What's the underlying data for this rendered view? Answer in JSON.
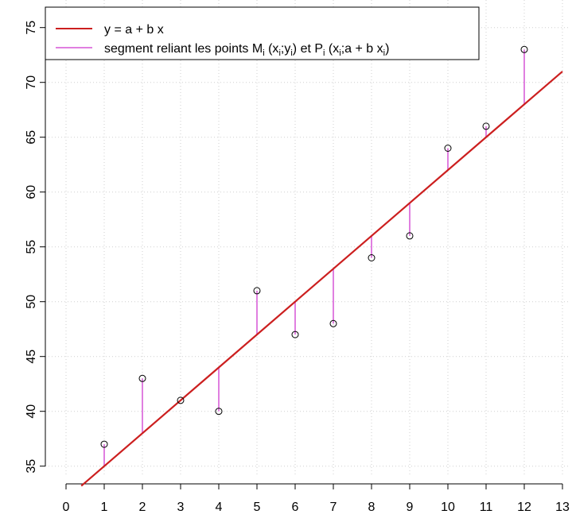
{
  "chart_data": {
    "type": "scatter",
    "title": "",
    "xlabel": "",
    "ylabel": "",
    "xlim": [
      0,
      13
    ],
    "ylim": [
      34,
      76
    ],
    "x_ticks": [
      0,
      1,
      2,
      3,
      4,
      5,
      6,
      7,
      8,
      9,
      10,
      11,
      12,
      13
    ],
    "y_ticks": [
      35,
      40,
      45,
      50,
      55,
      60,
      65,
      70,
      75
    ],
    "grid": true,
    "legend_position": "top-left",
    "regression": {
      "a": 32,
      "b": 3
    },
    "points": {
      "x": [
        1,
        2,
        3,
        4,
        5,
        6,
        7,
        8,
        9,
        10,
        11,
        12
      ],
      "y": [
        37,
        43,
        41,
        40,
        51,
        47,
        48,
        54,
        56,
        64,
        66,
        73
      ]
    },
    "colors": {
      "line": "#cc1f1f",
      "segment": "#e07fe0",
      "grid": "#cfcfcf"
    },
    "legend": {
      "line_label": "y = a + b x",
      "segment_label": {
        "part1": "segment reliant les points M",
        "sub_i": "i",
        "part2": " (x",
        "part3": ";y",
        "part4": ") et P",
        "part5": " (x",
        "part6": ";a + b x",
        "part7": ")"
      }
    }
  }
}
